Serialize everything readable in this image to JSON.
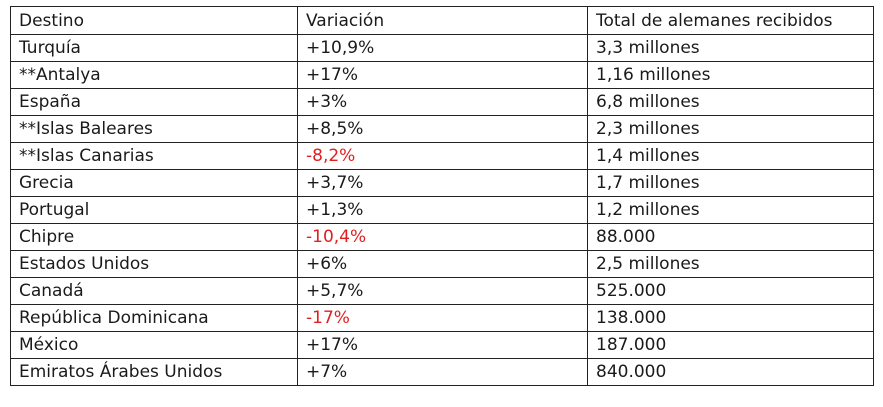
{
  "table": {
    "headers": {
      "destino": "Destino",
      "variacion": "Variación",
      "total": "Total de alemanes recibidos"
    },
    "rows": [
      {
        "destino": "Turquía",
        "variacion": "+10,9%",
        "total": "3,3 millones",
        "negative": false
      },
      {
        "destino": "**Antalya",
        "variacion": "+17%",
        "total": "1,16 millones",
        "negative": false
      },
      {
        "destino": "España",
        "variacion": "+3%",
        "total": "6,8 millones",
        "negative": false
      },
      {
        "destino": "**Islas Baleares",
        "variacion": "+8,5%",
        "total": "2,3 millones",
        "negative": false
      },
      {
        "destino": "**Islas Canarias",
        "variacion": "-8,2%",
        "total": "1,4 millones",
        "negative": true
      },
      {
        "destino": "Grecia",
        "variacion": "+3,7%",
        "total": "1,7 millones",
        "negative": false
      },
      {
        "destino": "Portugal",
        "variacion": "+1,3%",
        "total": "1,2 millones",
        "negative": false
      },
      {
        "destino": "Chipre",
        "variacion": "-10,4%",
        "total": "88.000",
        "negative": true
      },
      {
        "destino": " Estados Unidos",
        "variacion": "+6%",
        "total": "2,5 millones",
        "negative": false
      },
      {
        "destino": "Canadá",
        "variacion": "+5,7%",
        "total": "525.000",
        "negative": false
      },
      {
        "destino": "República Dominicana",
        "variacion": "-17%",
        "total": "138.000",
        "negative": true
      },
      {
        "destino": "México",
        "variacion": "+17%",
        "total": "187.000",
        "negative": false
      },
      {
        "destino": "Emiratos Árabes Unidos",
        "variacion": "+7%",
        "total": "840.000",
        "negative": false
      }
    ],
    "colors": {
      "text": "#1a1a1a",
      "negative": "#e02020",
      "border": "#222222"
    }
  }
}
